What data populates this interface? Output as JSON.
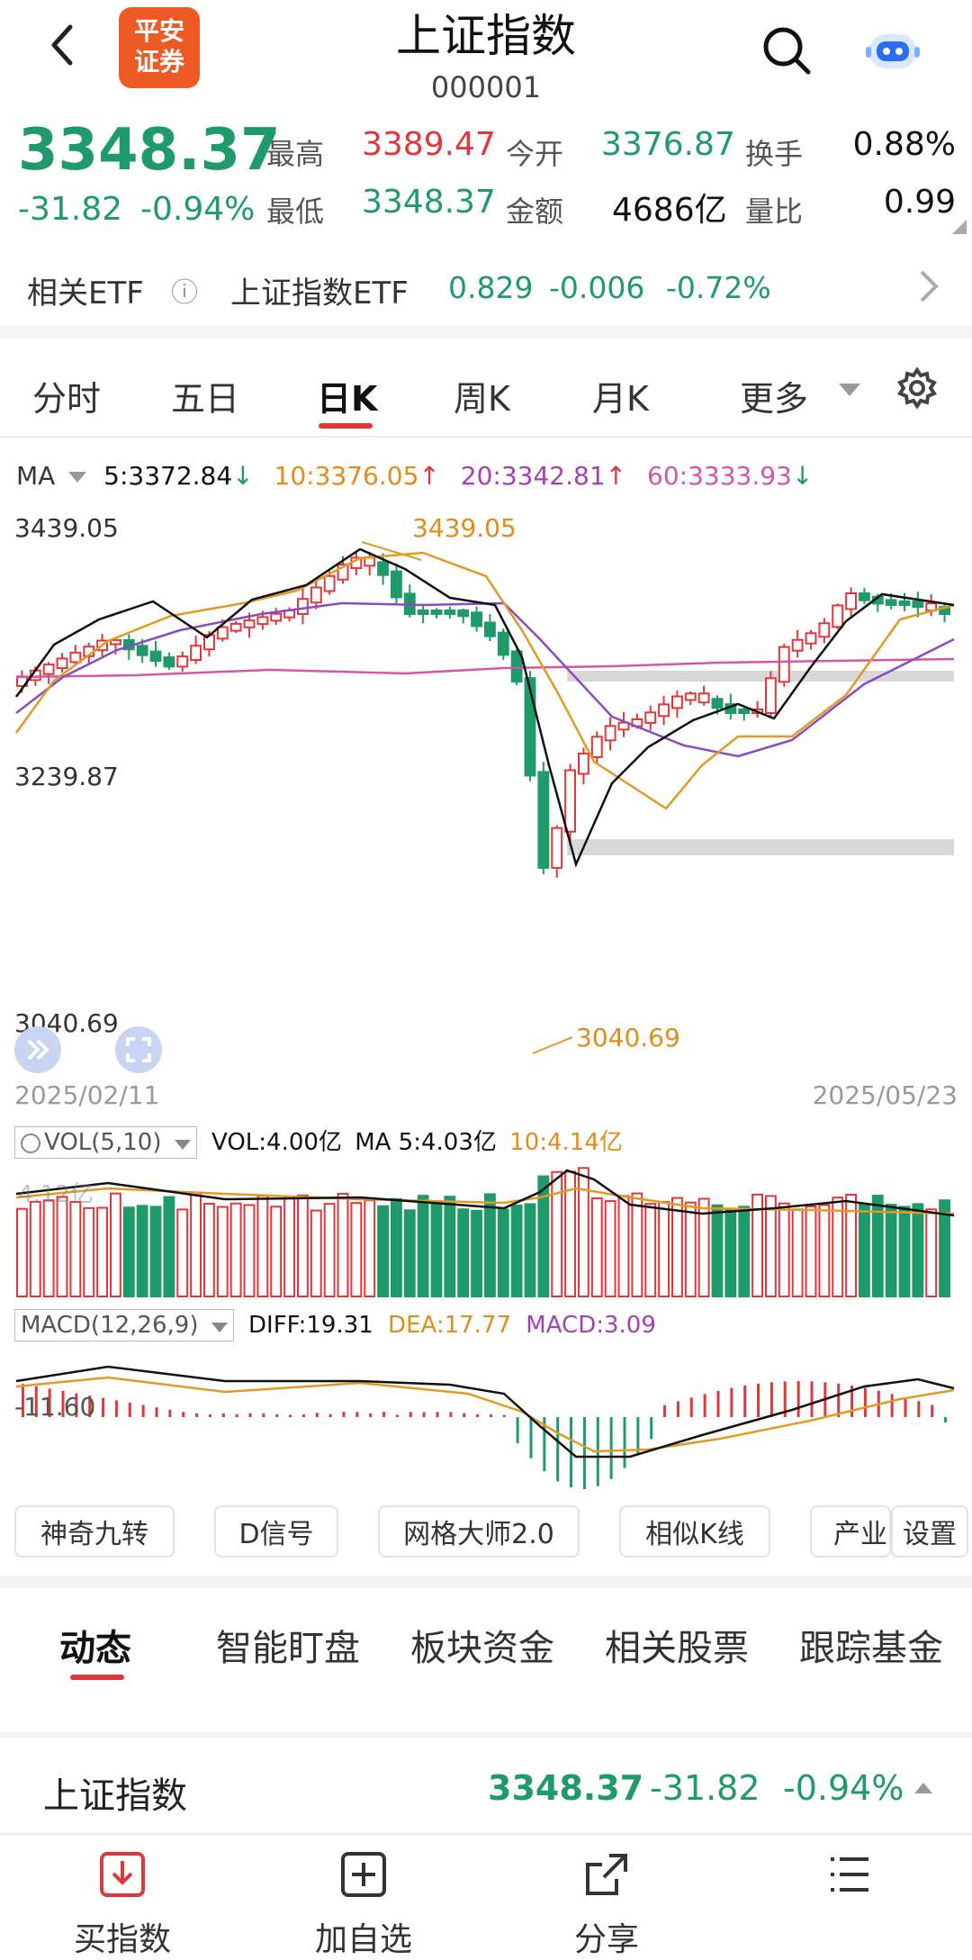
{
  "header": {
    "title": "上证指数",
    "code": "000001",
    "logo_line1": "平安",
    "logo_line2": "证券"
  },
  "quote": {
    "price": "3348.37",
    "change": "-31.82",
    "change_pct": "-0.94%",
    "high_label": "最高",
    "high": "3389.47",
    "open_label": "今开",
    "open": "3376.87",
    "turnover_label": "换手",
    "turnover": "0.88%",
    "low_label": "最低",
    "low": "3348.37",
    "amount_label": "金额",
    "amount": "4686亿",
    "ratio_label": "量比",
    "ratio": "0.99"
  },
  "etf": {
    "label": "相关ETF",
    "info_icon": "ⓘ",
    "name": "上证指数ETF",
    "price": "0.829",
    "change": "-0.006",
    "change_pct": "-0.72%"
  },
  "chart_tabs": [
    "分时",
    "五日",
    "日K",
    "周K",
    "月K",
    "更多"
  ],
  "active_tab": "日K",
  "ma": {
    "label": "MA",
    "ma5": "5:3372.84",
    "ma10": "10:3376.05",
    "ma20": "20:3342.81",
    "ma60": "60:3333.93"
  },
  "price_axis": {
    "top": "3439.05",
    "mid": "3239.87",
    "bottom": "3040.69"
  },
  "annotations": {
    "high_mark": "3439.05",
    "low_mark": "3040.69"
  },
  "dates": {
    "start": "2025/02/11",
    "end": "2025/05/23"
  },
  "vol": {
    "label": "VOL(5,10)",
    "vol": "VOL:4.00亿",
    "ma5": "MA 5:4.03亿",
    "ma10": "10:4.14亿",
    "axis": "4.12亿"
  },
  "macd": {
    "label": "MACD(12,26,9)",
    "diff": "DIFF:19.31",
    "dea": "DEA:17.77",
    "macd": "MACD:3.09",
    "axis": "-11.60"
  },
  "tools": [
    "神奇九转",
    "D信号",
    "网格大师2.0",
    "相似K线",
    "产业",
    "设置"
  ],
  "sub_tabs": [
    "动态",
    "智能盯盘",
    "板块资金",
    "相关股票",
    "跟踪基金"
  ],
  "active_sub_tab": "动态",
  "summary": {
    "name": "上证指数",
    "price": "3348.37",
    "change": "-31.82",
    "change_pct": "-0.94%"
  },
  "bottom_bar": {
    "buy": "买指数",
    "add": "加自选",
    "share": "分享"
  },
  "colors": {
    "up": "#e0373b",
    "down": "#1f9a6a",
    "ma5": "#111111",
    "ma10": "#e39a24",
    "ma20": "#8a4bc2",
    "ma60": "#d356a8",
    "accent": "#e0373b"
  },
  "chart_data": {
    "type": "candlestick",
    "x_range": [
      "2025/02/11",
      "2025/05/23"
    ],
    "y_axis_ticks": [
      3439.05,
      3239.87,
      3040.69
    ],
    "period_high": 3439.05,
    "period_low": 3040.69,
    "series": [
      {
        "name": "MA5",
        "last": 3372.84
      },
      {
        "name": "MA10",
        "last": 3376.05
      },
      {
        "name": "MA20",
        "last": 3342.81
      },
      {
        "name": "MA60",
        "last": 3333.93
      }
    ]
  }
}
